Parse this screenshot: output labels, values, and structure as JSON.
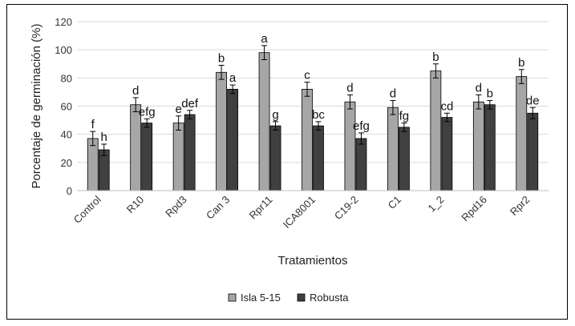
{
  "chart_data": {
    "type": "bar",
    "title": "",
    "xlabel": "Tratamientos",
    "ylabel": "Porcentaje de germinación (%)",
    "ylim": [
      0,
      120
    ],
    "yticks": [
      0,
      20,
      40,
      60,
      80,
      100,
      120
    ],
    "grid": "horizontal",
    "legend_position": "bottom",
    "categories": [
      "Control",
      "R10",
      "Rpd3",
      "Can 3",
      "Rpr11",
      "ICA8001",
      "C19-2",
      "C1",
      "1_2",
      "Rpd16",
      "Rpr2"
    ],
    "series": [
      {
        "name": "Isla 5-15",
        "color": "#a6a6a6",
        "values": [
          37,
          61,
          48,
          84,
          98,
          72,
          63,
          59,
          85,
          63,
          81
        ],
        "errors": [
          5,
          5,
          5,
          5,
          5,
          5,
          5,
          5,
          5,
          5,
          5
        ],
        "letters": [
          "f",
          "d",
          "e",
          "b",
          "a",
          "c",
          "d",
          "d",
          "b",
          "d",
          "b"
        ]
      },
      {
        "name": "Robusta",
        "color": "#404040",
        "values": [
          29,
          48,
          54,
          72,
          46,
          46,
          37,
          45,
          52,
          61,
          55
        ],
        "errors": [
          4,
          3,
          3,
          3,
          3,
          3,
          4,
          3,
          3,
          3,
          4
        ],
        "letters": [
          "h",
          "efg",
          "def",
          "a",
          "g",
          "bc",
          "efg",
          "fg",
          "cd",
          "b",
          "de"
        ]
      }
    ]
  }
}
